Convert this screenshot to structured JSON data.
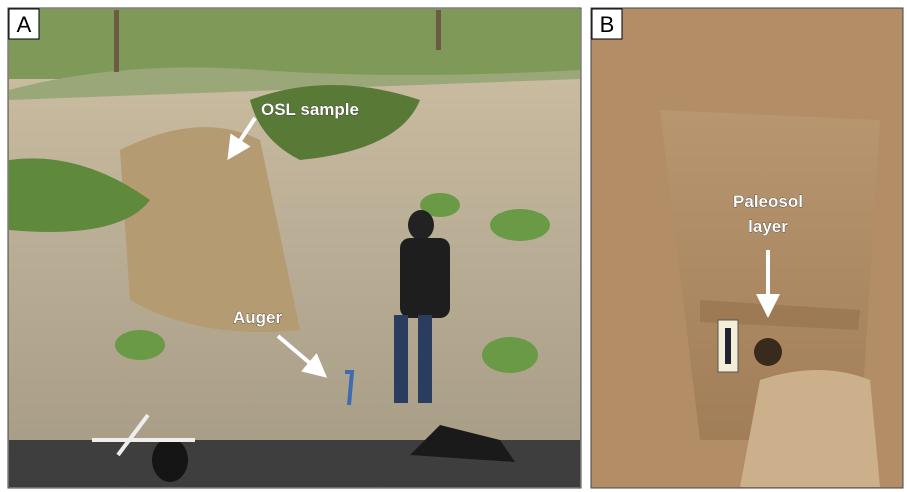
{
  "panels": [
    {
      "label": "A",
      "annotations": [
        "OSL sample",
        "Auger"
      ]
    },
    {
      "label": "B",
      "annotations": [
        "Paleosol",
        "layer"
      ]
    }
  ]
}
